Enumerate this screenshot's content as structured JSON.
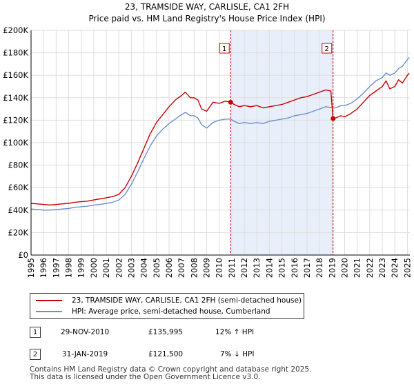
{
  "title": {
    "line1": "23, TRAMSIDE WAY, CARLISLE, CA1 2FH",
    "line2": "Price paid vs. HM Land Registry's House Price Index (HPI)"
  },
  "colors": {
    "property": "#cc0000",
    "hpi": "#6a8fcc",
    "shade": "#e8eefa",
    "grid": "#dddddd",
    "vline": "#cc0000"
  },
  "legend": {
    "property": "23, TRAMSIDE WAY, CARLISLE, CA1 2FH (semi-detached house)",
    "hpi": "HPI: Average price, semi-detached house, Cumberland"
  },
  "transactions": [
    {
      "num": "1",
      "date": "29-NOV-2010",
      "price": "£135,995",
      "hpi_change": "12% ↑ HPI"
    },
    {
      "num": "2",
      "date": "31-JAN-2019",
      "price": "£121,500",
      "hpi_change": "7% ↓ HPI"
    }
  ],
  "footer": {
    "line1": "Contains HM Land Registry data © Crown copyright and database right 2025.",
    "line2": "This data is licensed under the Open Government Licence v3.0."
  },
  "chart_data": {
    "type": "line",
    "ylim": [
      0,
      200000
    ],
    "xlim": [
      1995,
      2025.2
    ],
    "yticks": [
      0,
      20000,
      40000,
      60000,
      80000,
      100000,
      120000,
      140000,
      160000,
      180000,
      200000
    ],
    "ytick_labels": [
      "£0",
      "£20K",
      "£40K",
      "£60K",
      "£80K",
      "£100K",
      "£120K",
      "£140K",
      "£160K",
      "£180K",
      "£200K"
    ],
    "xtick_labels": [
      "1995",
      "1996",
      "1997",
      "1998",
      "1999",
      "2000",
      "2001",
      "2002",
      "2003",
      "2004",
      "2005",
      "2006",
      "2007",
      "2008",
      "2009",
      "2010",
      "2011",
      "2012",
      "2013",
      "2014",
      "2015",
      "2016",
      "2017",
      "2018",
      "2019",
      "2020",
      "2021",
      "2022",
      "2023",
      "2024",
      "2025"
    ],
    "shaded_region": [
      2010.91,
      2019.08
    ],
    "markers": [
      {
        "label": "1",
        "x": 2010.91,
        "y": 135995
      },
      {
        "label": "2",
        "x": 2019.08,
        "y": 121500
      }
    ],
    "series": [
      {
        "name": "23, TRAMSIDE WAY, CARLISLE, CA1 2FH (semi-detached house)",
        "points": [
          [
            1995,
            46000
          ],
          [
            1995.5,
            45500
          ],
          [
            1996,
            45000
          ],
          [
            1996.5,
            44500
          ],
          [
            1997,
            45000
          ],
          [
            1997.5,
            45500
          ],
          [
            1998,
            46000
          ],
          [
            1998.5,
            47000
          ],
          [
            1999,
            47500
          ],
          [
            1999.5,
            48000
          ],
          [
            2000,
            49000
          ],
          [
            2000.5,
            50000
          ],
          [
            2001,
            51000
          ],
          [
            2001.5,
            52000
          ],
          [
            2002,
            54000
          ],
          [
            2002.5,
            60000
          ],
          [
            2003,
            70000
          ],
          [
            2003.5,
            82000
          ],
          [
            2004,
            95000
          ],
          [
            2004.5,
            108000
          ],
          [
            2005,
            118000
          ],
          [
            2005.5,
            125000
          ],
          [
            2006,
            132000
          ],
          [
            2006.5,
            138000
          ],
          [
            2007,
            142000
          ],
          [
            2007.3,
            145000
          ],
          [
            2007.7,
            140000
          ],
          [
            2008,
            140000
          ],
          [
            2008.3,
            138000
          ],
          [
            2008.6,
            130000
          ],
          [
            2009,
            128000
          ],
          [
            2009.5,
            136000
          ],
          [
            2010,
            135000
          ],
          [
            2010.5,
            137000
          ],
          [
            2010.91,
            135995
          ],
          [
            2011.2,
            134000
          ],
          [
            2011.6,
            132000
          ],
          [
            2012,
            133000
          ],
          [
            2012.5,
            132000
          ],
          [
            2013,
            133000
          ],
          [
            2013.5,
            131000
          ],
          [
            2014,
            132000
          ],
          [
            2014.5,
            133000
          ],
          [
            2015,
            134000
          ],
          [
            2015.5,
            136000
          ],
          [
            2016,
            138000
          ],
          [
            2016.5,
            140000
          ],
          [
            2017,
            141000
          ],
          [
            2017.5,
            143000
          ],
          [
            2018,
            145000
          ],
          [
            2018.5,
            147000
          ],
          [
            2018.9,
            146000
          ],
          [
            2019.08,
            121500
          ],
          [
            2019.3,
            122000
          ],
          [
            2019.7,
            124000
          ],
          [
            2020,
            123000
          ],
          [
            2020.5,
            126000
          ],
          [
            2021,
            130000
          ],
          [
            2021.5,
            136000
          ],
          [
            2022,
            142000
          ],
          [
            2022.5,
            146000
          ],
          [
            2023,
            150000
          ],
          [
            2023.3,
            155000
          ],
          [
            2023.6,
            148000
          ],
          [
            2024,
            150000
          ],
          [
            2024.3,
            156000
          ],
          [
            2024.6,
            153000
          ],
          [
            2025,
            160000
          ],
          [
            2025.15,
            162000
          ]
        ]
      },
      {
        "name": "HPI: Average price, semi-detached house, Cumberland",
        "points": [
          [
            1995,
            41000
          ],
          [
            1995.5,
            40500
          ],
          [
            1996,
            40000
          ],
          [
            1996.5,
            40000
          ],
          [
            1997,
            40500
          ],
          [
            1997.5,
            41000
          ],
          [
            1998,
            41500
          ],
          [
            1998.5,
            42500
          ],
          [
            1999,
            43000
          ],
          [
            1999.5,
            43500
          ],
          [
            2000,
            44500
          ],
          [
            2000.5,
            45000
          ],
          [
            2001,
            46000
          ],
          [
            2001.5,
            47000
          ],
          [
            2002,
            49000
          ],
          [
            2002.5,
            54000
          ],
          [
            2003,
            63000
          ],
          [
            2003.5,
            74000
          ],
          [
            2004,
            86000
          ],
          [
            2004.5,
            97000
          ],
          [
            2005,
            106000
          ],
          [
            2005.5,
            112000
          ],
          [
            2006,
            117000
          ],
          [
            2006.5,
            121000
          ],
          [
            2007,
            125000
          ],
          [
            2007.3,
            127000
          ],
          [
            2007.7,
            124000
          ],
          [
            2008,
            124000
          ],
          [
            2008.3,
            122000
          ],
          [
            2008.6,
            116000
          ],
          [
            2009,
            113000
          ],
          [
            2009.5,
            118000
          ],
          [
            2010,
            120000
          ],
          [
            2010.5,
            121000
          ],
          [
            2010.91,
            121000
          ],
          [
            2011.2,
            119000
          ],
          [
            2011.6,
            117000
          ],
          [
            2012,
            118000
          ],
          [
            2012.5,
            117000
          ],
          [
            2013,
            118000
          ],
          [
            2013.5,
            117000
          ],
          [
            2014,
            119000
          ],
          [
            2014.5,
            120000
          ],
          [
            2015,
            121000
          ],
          [
            2015.5,
            122000
          ],
          [
            2016,
            124000
          ],
          [
            2016.5,
            125000
          ],
          [
            2017,
            126000
          ],
          [
            2017.5,
            128000
          ],
          [
            2018,
            130000
          ],
          [
            2018.5,
            132000
          ],
          [
            2019.08,
            131000
          ],
          [
            2019.3,
            131000
          ],
          [
            2019.7,
            133000
          ],
          [
            2020,
            133000
          ],
          [
            2020.5,
            135000
          ],
          [
            2021,
            139000
          ],
          [
            2021.5,
            144000
          ],
          [
            2022,
            150000
          ],
          [
            2022.5,
            155000
          ],
          [
            2023,
            158000
          ],
          [
            2023.3,
            162000
          ],
          [
            2023.6,
            160000
          ],
          [
            2024,
            162000
          ],
          [
            2024.3,
            166000
          ],
          [
            2024.6,
            168000
          ],
          [
            2025,
            174000
          ],
          [
            2025.15,
            176000
          ]
        ]
      }
    ]
  }
}
